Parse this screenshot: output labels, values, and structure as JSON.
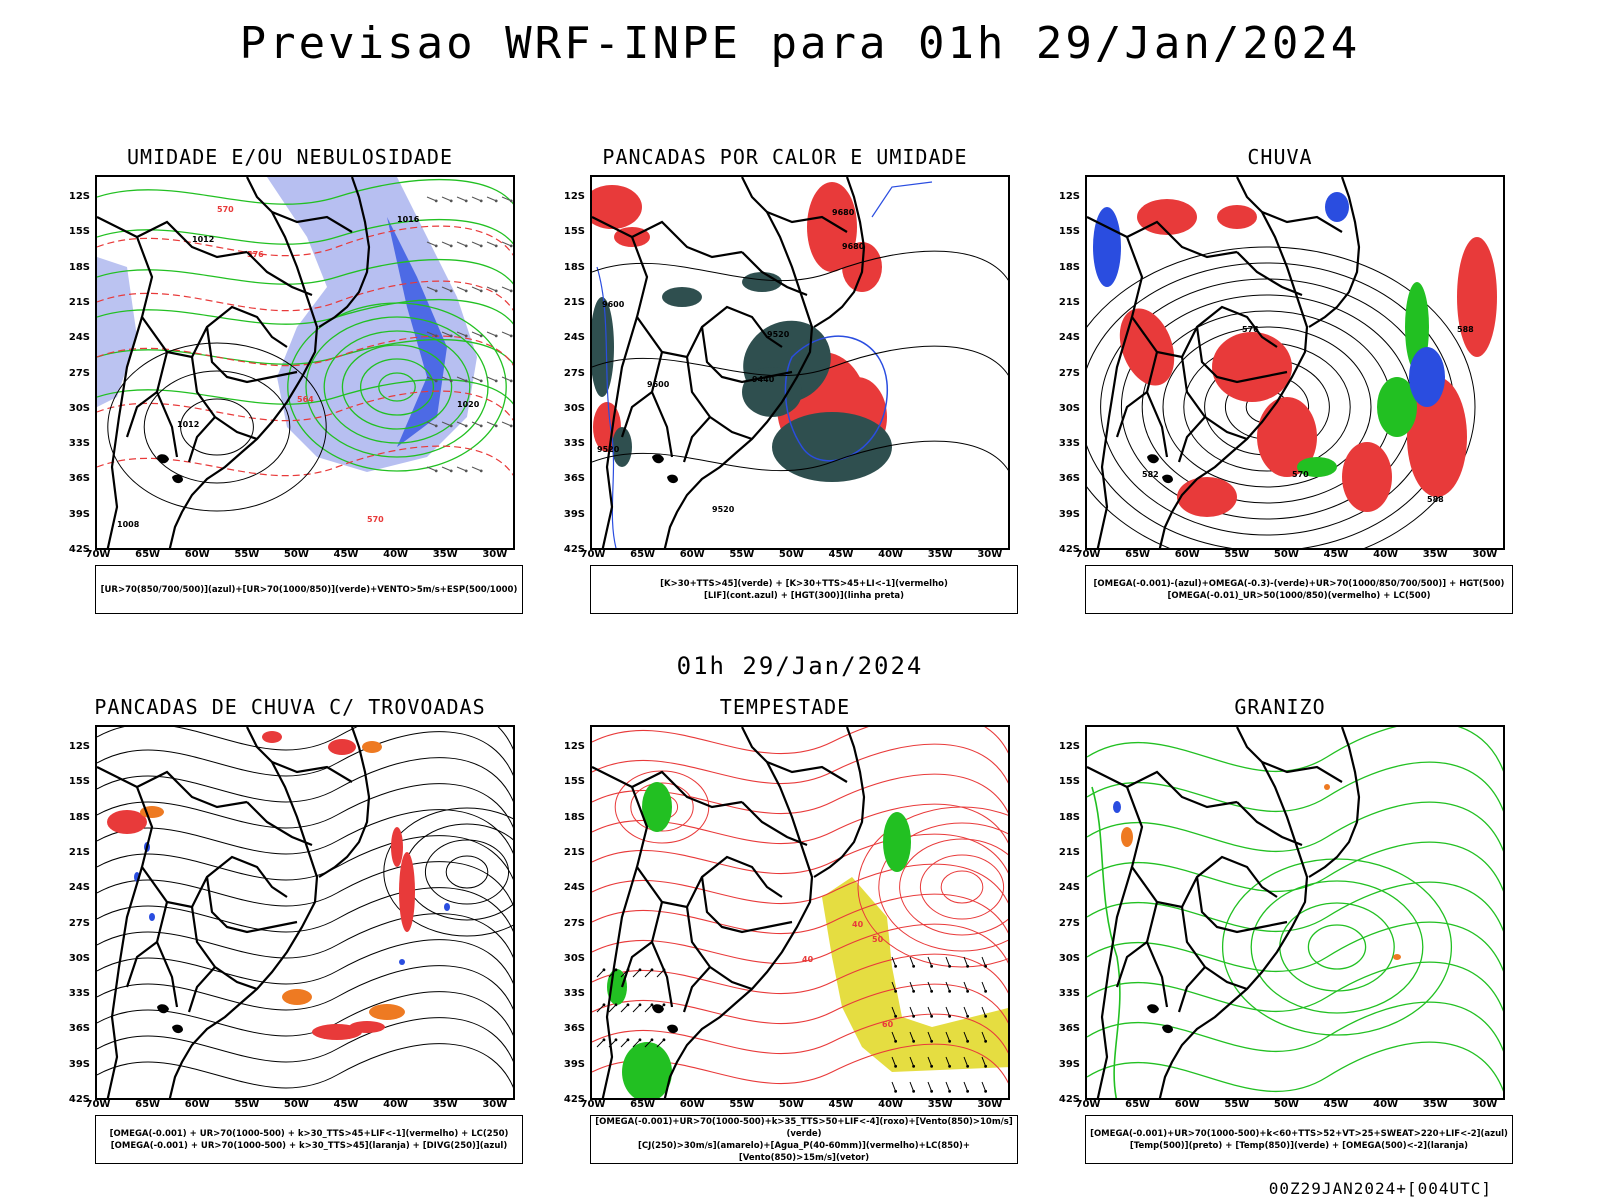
{
  "title": "Previsao WRF-INPE  para 01h 29/Jan/2024",
  "middle_label": "01h 29/Jan/2024",
  "footer": "00Z29JAN2024+[004UTC]",
  "lat_labels": [
    "12S",
    "15S",
    "18S",
    "21S",
    "24S",
    "27S",
    "30S",
    "33S",
    "36S",
    "39S",
    "42S"
  ],
  "lon_labels": [
    "70W",
    "65W",
    "60W",
    "55W",
    "50W",
    "45W",
    "40W",
    "35W",
    "30W"
  ],
  "colors": {
    "red": "#e83a3a",
    "green": "#22c022",
    "blue": "#2a4de0",
    "lavender": "#aab4ee",
    "darkteal": "#2f4f4f",
    "yellow": "#e2d92c",
    "orange": "#ee7a22"
  },
  "panels": [
    {
      "title": "UMIDADE E/OU NEBULOSIDADE",
      "legend": [
        "[UR>70(850/700/500)](azul)+[UR>70(1000/850)](verde)+VENTO>5m/s+ESP(500/1000)"
      ],
      "contour_labels": [
        "1012",
        "1016",
        "1020",
        "570",
        "576",
        "564",
        "1008"
      ]
    },
    {
      "title": "PANCADAS POR CALOR E UMIDADE",
      "legend": [
        "[K>30+TTS>45](verde) + [K>30+TTS>45+LI<-1](vermelho)",
        "[LIF](cont.azul) + [HGT(300)](linha preta)"
      ],
      "contour_labels": [
        "9680",
        "9600",
        "9520",
        "9440"
      ]
    },
    {
      "title": "CHUVA",
      "legend": [
        "[OMEGA(-0.001)-(azul)+OMEGA(-0.3)-(verde)+UR>70(1000/850/700/500)] + HGT(500)",
        "[OMEGA(-0.01)_UR>50(1000/850)(vermelho) + LC(500)"
      ],
      "contour_labels": [
        "576",
        "582",
        "588",
        "570"
      ]
    },
    {
      "title": "PANCADAS DE CHUVA C/ TROVOADAS",
      "legend": [
        "[OMEGA(-0.001) + UR>70(1000-500) + k>30_TTS>45+LIF<-1](vermelho) + LC(250)",
        "[OMEGA(-0.001) + UR>70(1000-500) + k>30_TTS>45](laranja) + [DIVG(250)](azul)"
      ],
      "contour_labels": []
    },
    {
      "title": "TEMPESTADE",
      "legend": [
        "[OMEGA(-0.001)+UR>70(1000-500)+k>35_TTS>50+LIF<-4](roxo)+[Vento(850)>10m/s](verde)",
        "[CJ(250)>30m/s](amarelo)+[Agua_P(40-60mm)](vermelho)+LC(850)+[Vento(850)>15m/s](vetor)"
      ],
      "contour_labels": [
        "40",
        "50",
        "60"
      ]
    },
    {
      "title": "GRANIZO",
      "legend": [
        "[OMEGA(-0.001)+UR>70(1000-500)+k<60+TTS>52+VT>25+SWEAT>220+LIF<-2](azul)",
        "[Temp(500)](preto) + [Temp(850)](verde) + [OMEGA(500)<-2](laranja)"
      ],
      "contour_labels": []
    }
  ]
}
